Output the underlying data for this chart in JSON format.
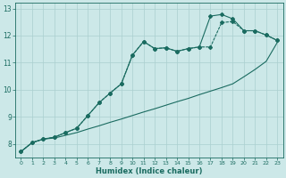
{
  "xlabel": "Humidex (Indice chaleur)",
  "ylabel": "",
  "bg_color": "#cce8e8",
  "line_color": "#1a6b60",
  "grid_color": "#aacfcf",
  "xlim": [
    -0.5,
    23.5
  ],
  "ylim": [
    7.5,
    13.2
  ],
  "xticks": [
    0,
    1,
    2,
    3,
    4,
    5,
    6,
    7,
    8,
    9,
    10,
    11,
    12,
    13,
    14,
    15,
    16,
    17,
    18,
    19,
    20,
    21,
    22,
    23
  ],
  "yticks": [
    8,
    9,
    10,
    11,
    12,
    13
  ],
  "series_bottom_x": [
    0,
    1,
    2,
    3,
    4,
    5,
    6,
    7,
    8,
    9,
    10,
    11,
    12,
    13,
    14,
    15,
    16,
    17,
    18,
    19,
    20,
    21,
    22,
    23
  ],
  "series_bottom_y": [
    7.72,
    8.05,
    8.18,
    8.22,
    8.32,
    8.42,
    8.55,
    8.67,
    8.8,
    8.92,
    9.05,
    9.18,
    9.3,
    9.43,
    9.56,
    9.68,
    9.82,
    9.95,
    10.08,
    10.22,
    10.48,
    10.75,
    11.05,
    11.75
  ],
  "series_mid_x": [
    0,
    1,
    2,
    3,
    4,
    5,
    6,
    7,
    8,
    9,
    10,
    11,
    12,
    13,
    14,
    15,
    16,
    17,
    18,
    19,
    20,
    21,
    22,
    23
  ],
  "series_mid_y": [
    7.72,
    8.05,
    8.18,
    8.25,
    8.42,
    8.58,
    9.05,
    9.52,
    9.88,
    10.22,
    11.28,
    11.78,
    11.52,
    11.55,
    11.42,
    11.52,
    11.58,
    11.58,
    12.48,
    12.52,
    12.18,
    12.18,
    12.02,
    11.82
  ],
  "series_top_x": [
    0,
    1,
    2,
    3,
    4,
    5,
    6,
    7,
    8,
    9,
    10,
    11,
    12,
    13,
    14,
    15,
    16,
    17,
    18,
    19,
    20,
    21,
    22,
    23
  ],
  "series_top_y": [
    7.72,
    8.05,
    8.18,
    8.25,
    8.42,
    8.58,
    9.05,
    9.52,
    9.88,
    10.22,
    11.28,
    11.78,
    11.52,
    11.55,
    11.42,
    11.52,
    11.58,
    12.72,
    12.78,
    12.62,
    12.18,
    12.18,
    12.02,
    11.82
  ]
}
